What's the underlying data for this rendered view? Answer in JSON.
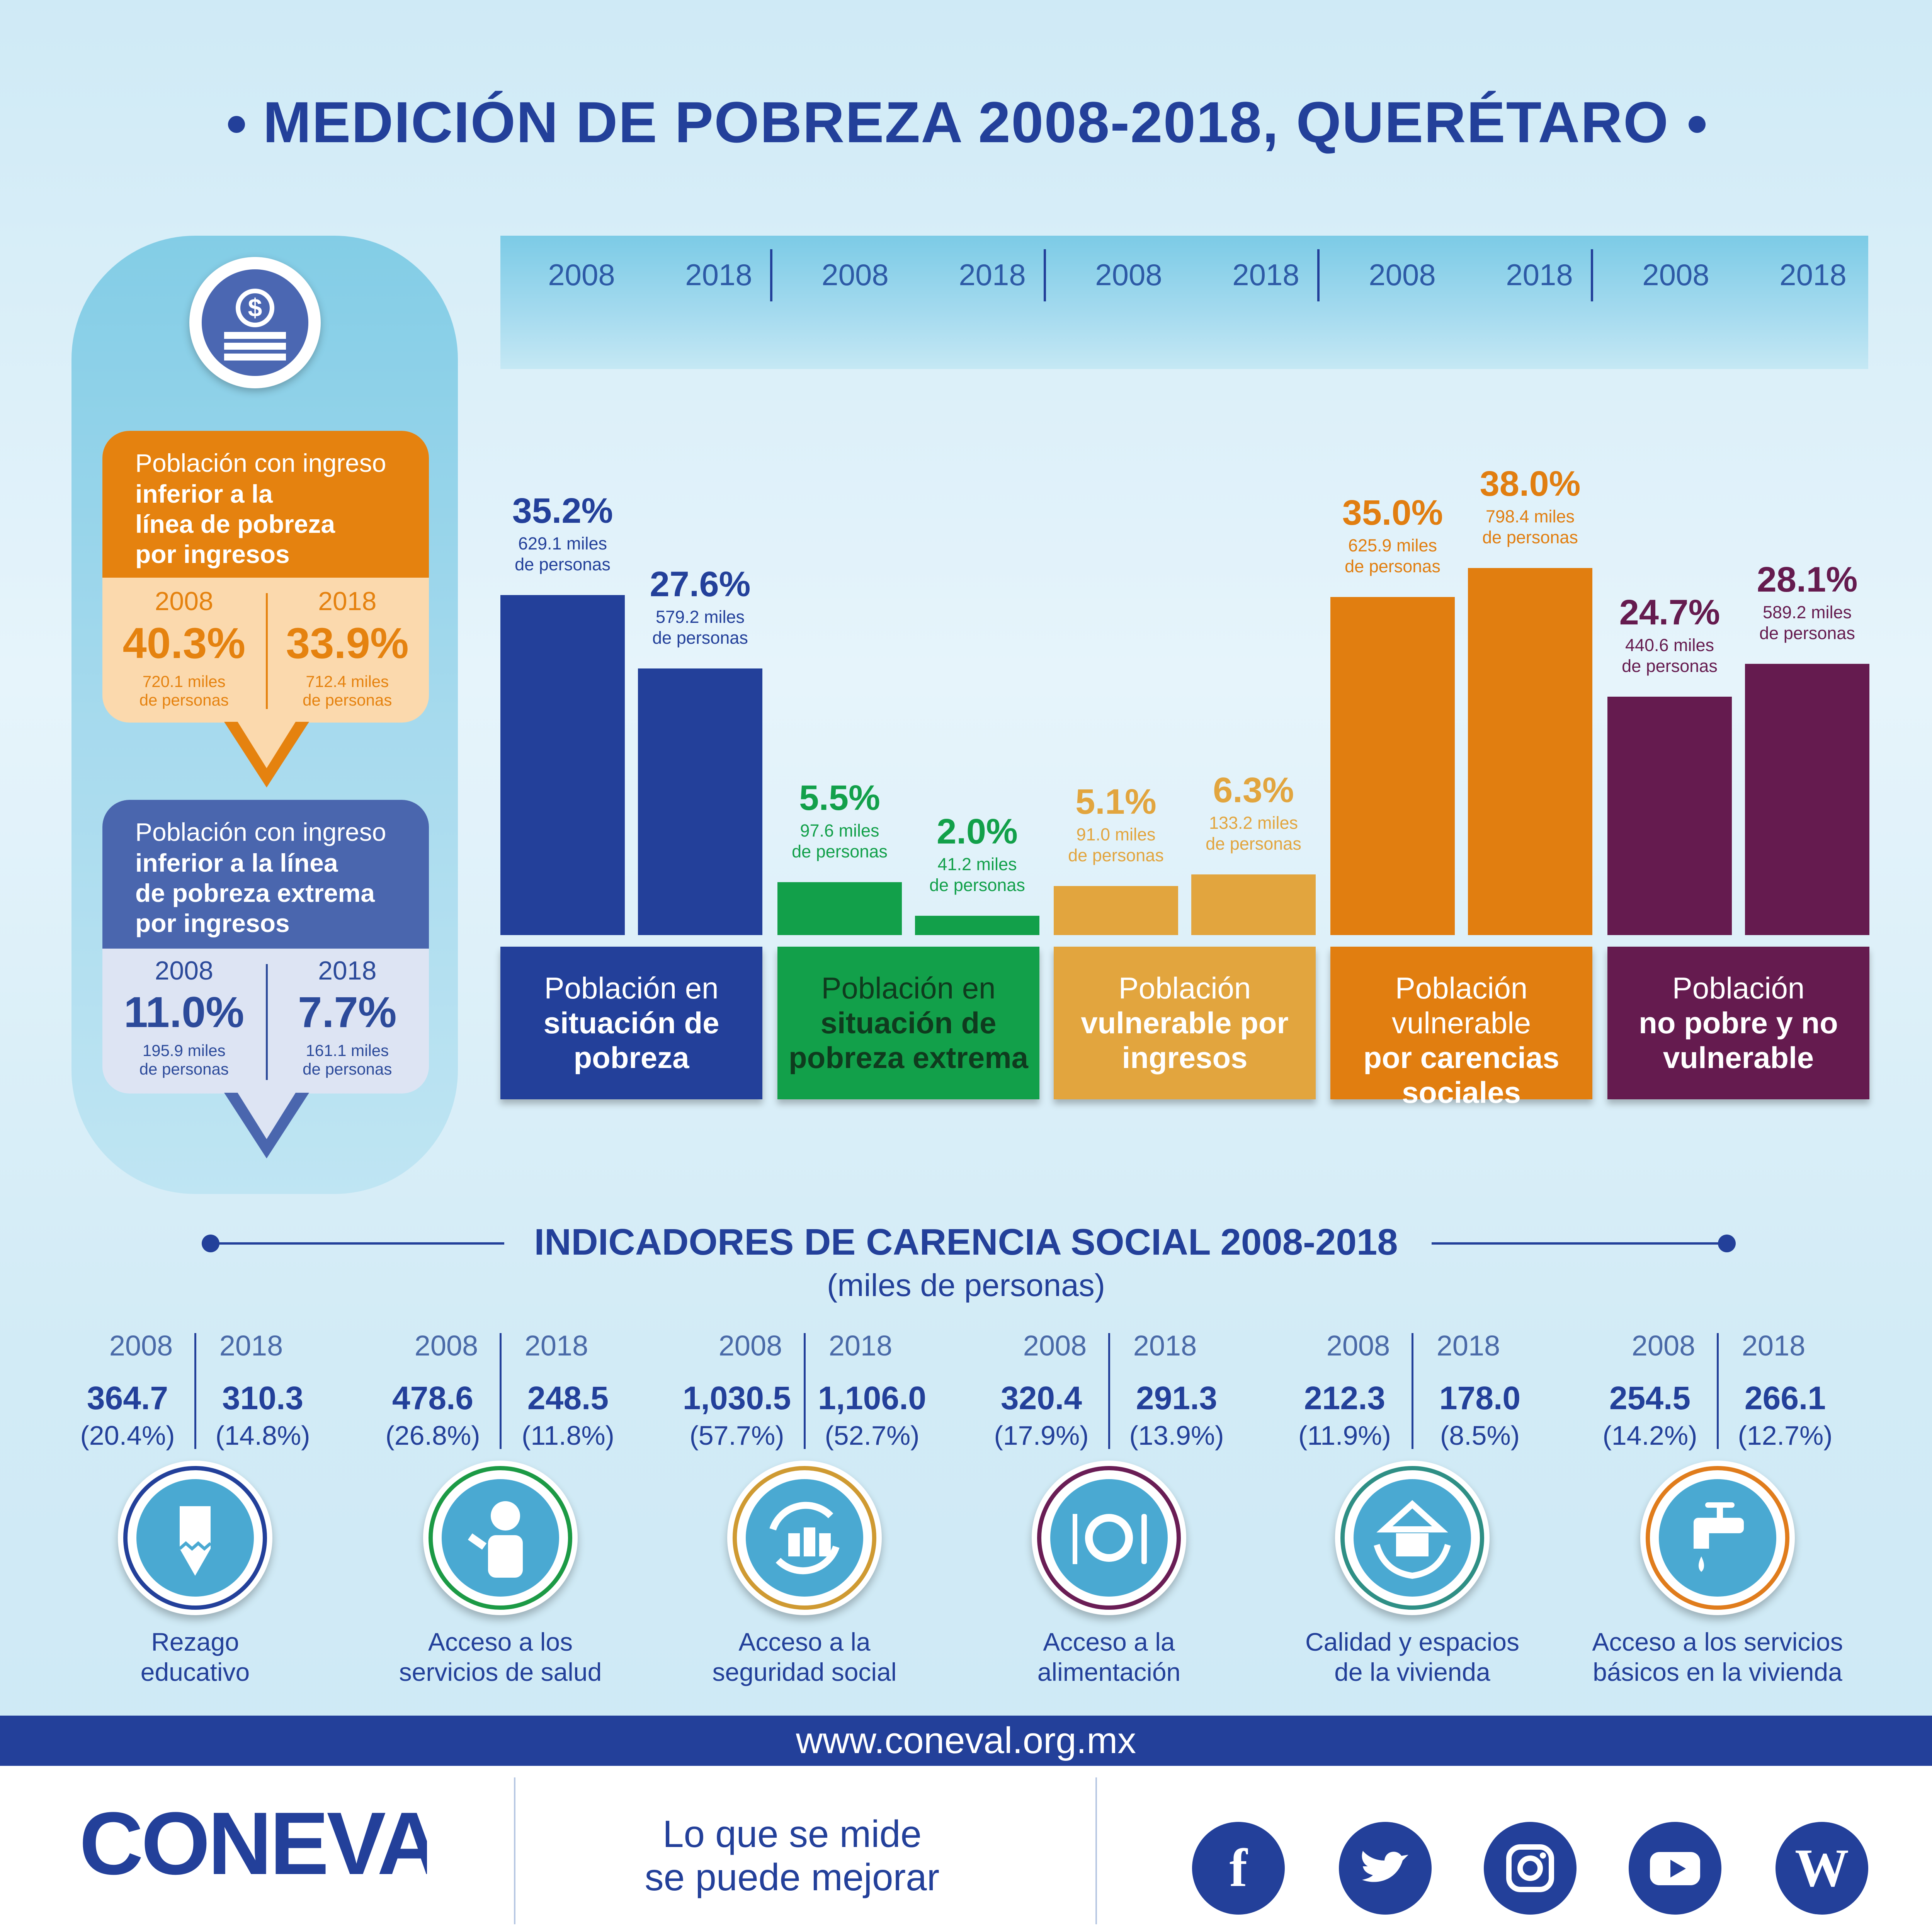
{
  "title": "MEDICIÓN DE POBREZA 2008-2018, QUERÉTARO",
  "colors": {
    "navy": "#23409a",
    "green": "#12a04a",
    "sand": "#e2a53e",
    "orange": "#e17e10",
    "purple": "#651b4f",
    "income_box": "#e5820f",
    "extreme_box": "#4a66ae"
  },
  "income_boxes": [
    {
      "header_line1": "Población con ingreso",
      "header_bold": [
        "inferior a la",
        "línea de pobreza",
        "por ingresos"
      ],
      "years": [
        "2008",
        "2018"
      ],
      "values": [
        "40.3%",
        "33.9%"
      ],
      "people": [
        [
          "720.1 miles",
          "de personas"
        ],
        [
          "712.4 miles",
          "de personas"
        ]
      ]
    },
    {
      "header_line1": "Población con ingreso",
      "header_bold": [
        "inferior a la línea",
        "de pobreza extrema",
        "por ingresos"
      ],
      "years": [
        "2008",
        "2018"
      ],
      "values": [
        "11.0%",
        "7.7%"
      ],
      "people": [
        [
          "195.9 miles",
          "de personas"
        ],
        [
          "161.1 miles",
          "de personas"
        ]
      ]
    }
  ],
  "band_years": [
    "2008",
    "2018",
    "2008",
    "2018",
    "2008",
    "2018",
    "2008",
    "2018",
    "2008",
    "2018"
  ],
  "chart_data": {
    "type": "bar",
    "title": "MEDICIÓN DE POBREZA 2008-2018, QUERÉTARO",
    "x": [
      "2008",
      "2018"
    ],
    "ylim": [
      0,
      40
    ],
    "grid": false,
    "series": [
      {
        "name": "Población en situación de pobreza",
        "label_lines": [
          "Población en",
          "situación de",
          "pobreza"
        ],
        "bold_from": 1,
        "color": "#23409a",
        "values": [
          35.2,
          27.6
        ],
        "labels": [
          "35.2%",
          "27.6%"
        ],
        "people": [
          [
            "629.1 miles",
            "de personas"
          ],
          [
            "579.2 miles",
            "de personas"
          ]
        ]
      },
      {
        "name": "Población en situación de pobreza extrema",
        "label_lines": [
          "Población en",
          "situación de",
          "pobreza extrema"
        ],
        "bold_from": 1,
        "color": "#12a04a",
        "values": [
          5.5,
          2.0
        ],
        "labels": [
          "5.5%",
          "2.0%"
        ],
        "people": [
          [
            "97.6 miles",
            "de personas"
          ],
          [
            "41.2 miles",
            "de personas"
          ]
        ]
      },
      {
        "name": "Población vulnerable por ingresos",
        "label_lines": [
          "Población",
          "vulnerable por",
          "ingresos"
        ],
        "bold_from": 1,
        "color": "#e2a53e",
        "values": [
          5.1,
          6.3
        ],
        "labels": [
          "5.1%",
          "6.3%"
        ],
        "people": [
          [
            "91.0 miles",
            "de personas"
          ],
          [
            "133.2 miles",
            "de personas"
          ]
        ]
      },
      {
        "name": "Población vulnerable por carencias sociales",
        "label_lines": [
          "Población vulnerable",
          "por carencias",
          "sociales"
        ],
        "bold_from": 1,
        "color": "#e17e10",
        "values": [
          35.0,
          38.0
        ],
        "labels": [
          "35.0%",
          "38.0%"
        ],
        "people": [
          [
            "625.9 miles",
            "de personas"
          ],
          [
            "798.4 miles",
            "de personas"
          ]
        ]
      },
      {
        "name": "Población no pobre y no vulnerable",
        "label_lines": [
          "Población",
          "no pobre y no",
          "vulnerable"
        ],
        "bold_from": 1,
        "color": "#651b4f",
        "values": [
          24.7,
          28.1
        ],
        "labels": [
          "24.7%",
          "28.1%"
        ],
        "people": [
          [
            "440.6 miles",
            "de personas"
          ],
          [
            "589.2 miles",
            "de personas"
          ]
        ]
      }
    ]
  },
  "indicators": {
    "title": "INDICADORES DE CARENCIA SOCIAL 2008-2018",
    "subtitle": "(miles de personas)",
    "items": [
      {
        "years": [
          "2008",
          "2018"
        ],
        "values": [
          "364.7",
          "310.3"
        ],
        "pct": [
          "(20.4%)",
          "(14.8%)"
        ],
        "label": [
          "Rezago",
          "educativo"
        ],
        "ring": "#23409a",
        "icon": "pencil-icon"
      },
      {
        "years": [
          "2008",
          "2018"
        ],
        "values": [
          "478.6",
          "248.5"
        ],
        "pct": [
          "(26.8%)",
          "(11.8%)"
        ],
        "label": [
          "Acceso a los",
          "servicios de salud"
        ],
        "ring": "#1c9a45",
        "icon": "doctor-icon"
      },
      {
        "years": [
          "2008",
          "2018"
        ],
        "values": [
          "1,030.5",
          "1,106.0"
        ],
        "pct": [
          "(57.7%)",
          "(52.7%)"
        ],
        "label": [
          "Acceso a la",
          "seguridad social"
        ],
        "ring": "#cf9a32",
        "icon": "social-security-icon"
      },
      {
        "years": [
          "2008",
          "2018"
        ],
        "values": [
          "320.4",
          "291.3"
        ],
        "pct": [
          "(17.9%)",
          "(13.9%)"
        ],
        "label": [
          "Acceso a la",
          "alimentación"
        ],
        "ring": "#6a1d55",
        "icon": "plate-icon"
      },
      {
        "years": [
          "2008",
          "2018"
        ],
        "values": [
          "212.3",
          "178.0"
        ],
        "pct": [
          "(11.9%)",
          "(8.5%)"
        ],
        "label": [
          "Calidad y espacios",
          "de la vivienda"
        ],
        "ring": "#2f8f85",
        "icon": "house-hands-icon"
      },
      {
        "years": [
          "2008",
          "2018"
        ],
        "values": [
          "254.5",
          "266.1"
        ],
        "pct": [
          "(14.2%)",
          "(12.7%)"
        ],
        "label": [
          "Acceso a los servicios",
          "básicos en la vivienda"
        ],
        "ring": "#e07c1c",
        "icon": "faucet-icon"
      }
    ]
  },
  "footer": {
    "url": "www.coneval.org.mx",
    "logo": "CONEVAL",
    "slogan": [
      "Lo que se mide",
      "se puede mejorar"
    ],
    "social": [
      {
        "icon": "facebook-icon",
        "glyph": "f"
      },
      {
        "icon": "twitter-icon",
        "glyph": ""
      },
      {
        "icon": "instagram-icon",
        "glyph": ""
      },
      {
        "icon": "youtube-icon",
        "glyph": ""
      },
      {
        "icon": "wordpress-icon",
        "glyph": "W"
      }
    ]
  }
}
